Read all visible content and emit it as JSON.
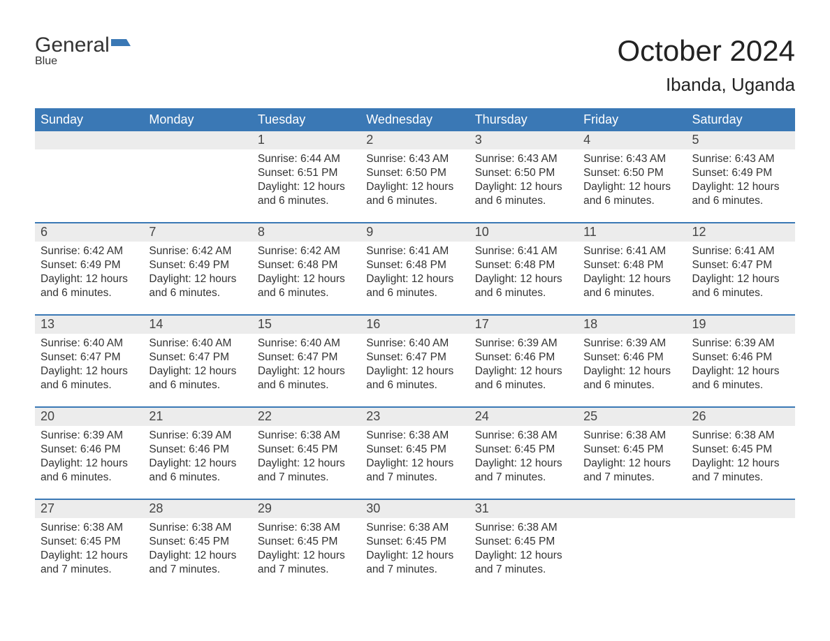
{
  "brand": {
    "part1": "General",
    "part2": "Blue"
  },
  "title": "October 2024",
  "location": "Ibanda, Uganda",
  "colors": {
    "header_bg": "#3a78b5",
    "header_text": "#ffffff",
    "daynum_bg": "#ececec",
    "week_divider": "#3a78b5",
    "body_text": "#333333",
    "logo_blue": "#3a78b5"
  },
  "typography": {
    "title_fontsize": 42,
    "location_fontsize": 26,
    "weekday_fontsize": 18,
    "daynum_fontsize": 18,
    "body_fontsize": 15.5
  },
  "weekdays": [
    "Sunday",
    "Monday",
    "Tuesday",
    "Wednesday",
    "Thursday",
    "Friday",
    "Saturday"
  ],
  "weeks": [
    [
      {
        "empty": true
      },
      {
        "empty": true
      },
      {
        "num": "1",
        "sunrise": "Sunrise: 6:44 AM",
        "sunset": "Sunset: 6:51 PM",
        "daylight": "Daylight: 12 hours and 6 minutes."
      },
      {
        "num": "2",
        "sunrise": "Sunrise: 6:43 AM",
        "sunset": "Sunset: 6:50 PM",
        "daylight": "Daylight: 12 hours and 6 minutes."
      },
      {
        "num": "3",
        "sunrise": "Sunrise: 6:43 AM",
        "sunset": "Sunset: 6:50 PM",
        "daylight": "Daylight: 12 hours and 6 minutes."
      },
      {
        "num": "4",
        "sunrise": "Sunrise: 6:43 AM",
        "sunset": "Sunset: 6:50 PM",
        "daylight": "Daylight: 12 hours and 6 minutes."
      },
      {
        "num": "5",
        "sunrise": "Sunrise: 6:43 AM",
        "sunset": "Sunset: 6:49 PM",
        "daylight": "Daylight: 12 hours and 6 minutes."
      }
    ],
    [
      {
        "num": "6",
        "sunrise": "Sunrise: 6:42 AM",
        "sunset": "Sunset: 6:49 PM",
        "daylight": "Daylight: 12 hours and 6 minutes."
      },
      {
        "num": "7",
        "sunrise": "Sunrise: 6:42 AM",
        "sunset": "Sunset: 6:49 PM",
        "daylight": "Daylight: 12 hours and 6 minutes."
      },
      {
        "num": "8",
        "sunrise": "Sunrise: 6:42 AM",
        "sunset": "Sunset: 6:48 PM",
        "daylight": "Daylight: 12 hours and 6 minutes."
      },
      {
        "num": "9",
        "sunrise": "Sunrise: 6:41 AM",
        "sunset": "Sunset: 6:48 PM",
        "daylight": "Daylight: 12 hours and 6 minutes."
      },
      {
        "num": "10",
        "sunrise": "Sunrise: 6:41 AM",
        "sunset": "Sunset: 6:48 PM",
        "daylight": "Daylight: 12 hours and 6 minutes."
      },
      {
        "num": "11",
        "sunrise": "Sunrise: 6:41 AM",
        "sunset": "Sunset: 6:48 PM",
        "daylight": "Daylight: 12 hours and 6 minutes."
      },
      {
        "num": "12",
        "sunrise": "Sunrise: 6:41 AM",
        "sunset": "Sunset: 6:47 PM",
        "daylight": "Daylight: 12 hours and 6 minutes."
      }
    ],
    [
      {
        "num": "13",
        "sunrise": "Sunrise: 6:40 AM",
        "sunset": "Sunset: 6:47 PM",
        "daylight": "Daylight: 12 hours and 6 minutes."
      },
      {
        "num": "14",
        "sunrise": "Sunrise: 6:40 AM",
        "sunset": "Sunset: 6:47 PM",
        "daylight": "Daylight: 12 hours and 6 minutes."
      },
      {
        "num": "15",
        "sunrise": "Sunrise: 6:40 AM",
        "sunset": "Sunset: 6:47 PM",
        "daylight": "Daylight: 12 hours and 6 minutes."
      },
      {
        "num": "16",
        "sunrise": "Sunrise: 6:40 AM",
        "sunset": "Sunset: 6:47 PM",
        "daylight": "Daylight: 12 hours and 6 minutes."
      },
      {
        "num": "17",
        "sunrise": "Sunrise: 6:39 AM",
        "sunset": "Sunset: 6:46 PM",
        "daylight": "Daylight: 12 hours and 6 minutes."
      },
      {
        "num": "18",
        "sunrise": "Sunrise: 6:39 AM",
        "sunset": "Sunset: 6:46 PM",
        "daylight": "Daylight: 12 hours and 6 minutes."
      },
      {
        "num": "19",
        "sunrise": "Sunrise: 6:39 AM",
        "sunset": "Sunset: 6:46 PM",
        "daylight": "Daylight: 12 hours and 6 minutes."
      }
    ],
    [
      {
        "num": "20",
        "sunrise": "Sunrise: 6:39 AM",
        "sunset": "Sunset: 6:46 PM",
        "daylight": "Daylight: 12 hours and 6 minutes."
      },
      {
        "num": "21",
        "sunrise": "Sunrise: 6:39 AM",
        "sunset": "Sunset: 6:46 PM",
        "daylight": "Daylight: 12 hours and 6 minutes."
      },
      {
        "num": "22",
        "sunrise": "Sunrise: 6:38 AM",
        "sunset": "Sunset: 6:45 PM",
        "daylight": "Daylight: 12 hours and 7 minutes."
      },
      {
        "num": "23",
        "sunrise": "Sunrise: 6:38 AM",
        "sunset": "Sunset: 6:45 PM",
        "daylight": "Daylight: 12 hours and 7 minutes."
      },
      {
        "num": "24",
        "sunrise": "Sunrise: 6:38 AM",
        "sunset": "Sunset: 6:45 PM",
        "daylight": "Daylight: 12 hours and 7 minutes."
      },
      {
        "num": "25",
        "sunrise": "Sunrise: 6:38 AM",
        "sunset": "Sunset: 6:45 PM",
        "daylight": "Daylight: 12 hours and 7 minutes."
      },
      {
        "num": "26",
        "sunrise": "Sunrise: 6:38 AM",
        "sunset": "Sunset: 6:45 PM",
        "daylight": "Daylight: 12 hours and 7 minutes."
      }
    ],
    [
      {
        "num": "27",
        "sunrise": "Sunrise: 6:38 AM",
        "sunset": "Sunset: 6:45 PM",
        "daylight": "Daylight: 12 hours and 7 minutes."
      },
      {
        "num": "28",
        "sunrise": "Sunrise: 6:38 AM",
        "sunset": "Sunset: 6:45 PM",
        "daylight": "Daylight: 12 hours and 7 minutes."
      },
      {
        "num": "29",
        "sunrise": "Sunrise: 6:38 AM",
        "sunset": "Sunset: 6:45 PM",
        "daylight": "Daylight: 12 hours and 7 minutes."
      },
      {
        "num": "30",
        "sunrise": "Sunrise: 6:38 AM",
        "sunset": "Sunset: 6:45 PM",
        "daylight": "Daylight: 12 hours and 7 minutes."
      },
      {
        "num": "31",
        "sunrise": "Sunrise: 6:38 AM",
        "sunset": "Sunset: 6:45 PM",
        "daylight": "Daylight: 12 hours and 7 minutes."
      },
      {
        "empty": true
      },
      {
        "empty": true
      }
    ]
  ]
}
